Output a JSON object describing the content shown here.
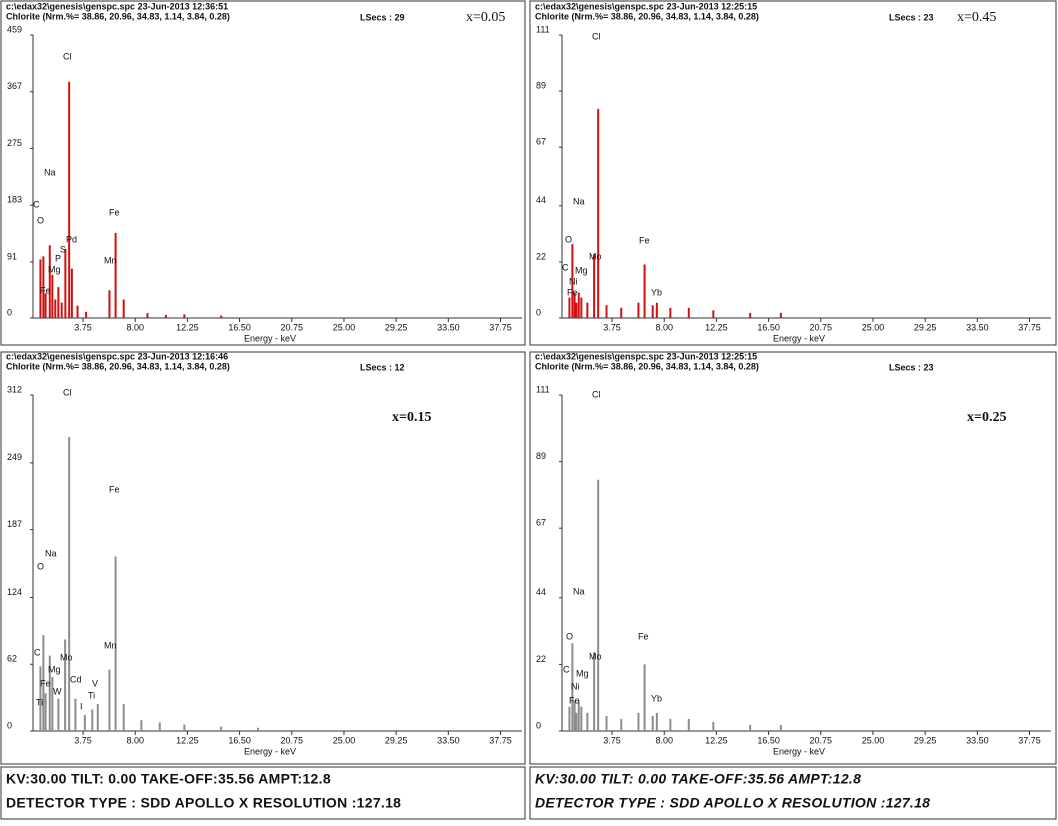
{
  "chart_data": [
    {
      "type": "bar",
      "header": "c:\\edax32\\genesis\\genspc.spc  23-Jun-2013 12:36:51",
      "subheader": "Chlorite (Nrm.%= 38.86, 20.96, 34.83, 1.14, 3.84, 0.28)",
      "lsecs": "LSecs :  29",
      "label": "x=0.05",
      "xlabel": "Energy - keV",
      "xlim": [
        0,
        39.5
      ],
      "xticks": [
        3.75,
        {
          "value": 8,
          "label": "8.00"
        },
        12.25,
        {
          "value": 16.5,
          "label": "16.50"
        },
        20.75,
        {
          "value": 25,
          "label": "25.00"
        },
        29.25,
        {
          "value": 33.5,
          "label": "33.50"
        },
        37.75
      ],
      "ylim": [
        0,
        459
      ],
      "yticks": [
        0,
        91,
        183,
        275,
        367,
        459
      ],
      "color": "#d01010",
      "x": [
        0.28,
        0.52,
        0.7,
        1.04,
        1.25,
        1.49,
        1.74,
        2.01,
        2.31,
        2.62,
        2.84,
        3.3,
        4.0,
        5.9,
        6.4,
        7.06,
        9.0,
        10.5,
        12.0,
        15.0
      ],
      "values": [
        95,
        100,
        40,
        118,
        70,
        30,
        50,
        25,
        112,
        383,
        80,
        20,
        10,
        45,
        138,
        30,
        8,
        5,
        6,
        4
      ],
      "annotations": [
        "Cl",
        "Na",
        "C",
        "O",
        "Fe",
        "Pd",
        "S",
        "P",
        "Mg",
        "Mn",
        "Fe"
      ]
    },
    {
      "type": "bar",
      "header": "c:\\edax32\\genesis\\genspc.spc  23-Jun-2013 12:25:15",
      "subheader": "Chlorite (Nrm.%= 38.86, 20.96, 34.83, 1.14, 3.84, 0.28)",
      "lsecs": "LSecs :  23",
      "label": "x=0.45",
      "xlabel": "Energy - keV",
      "xlim": [
        0,
        39.5
      ],
      "xticks": [
        3.75,
        {
          "value": 8,
          "label": "8.00"
        },
        12.25,
        {
          "value": 16.5,
          "label": "16.50"
        },
        20.75,
        {
          "value": 25,
          "label": "25.00"
        },
        29.25,
        {
          "value": 33.5,
          "label": "33.50"
        },
        37.75
      ],
      "ylim": [
        0,
        111
      ],
      "yticks": [
        0,
        22,
        44,
        67,
        89,
        111
      ],
      "color": "#d01010",
      "x": [
        0.28,
        0.52,
        0.7,
        0.85,
        1.04,
        1.25,
        1.74,
        2.29,
        2.62,
        3.3,
        4.5,
        5.9,
        6.4,
        7.06,
        7.4,
        8.5,
        10.0,
        12.0,
        15.0,
        17.5
      ],
      "values": [
        8,
        29,
        10,
        6,
        10,
        8,
        6,
        25,
        82,
        5,
        4,
        6,
        21,
        5,
        6,
        4,
        4,
        3,
        2,
        2
      ],
      "annotations": [
        "Cl",
        "Na",
        "O",
        "Mo",
        "Fe",
        "C",
        "Mg",
        "Ni",
        "Fe",
        "Yb"
      ]
    },
    {
      "type": "bar",
      "header": "c:\\edax32\\genesis\\genspc.spc  23-Jun-2013 12:16:46",
      "subheader": "Chlorite (Nrm.%= 38.86, 20.96, 34.83, 1.14, 3.84, 0.28)",
      "lsecs": "LSecs :  12",
      "label": "x=0.15",
      "xlabel": "Energy - keV",
      "xlim": [
        0,
        39.5
      ],
      "xticks": [
        3.75,
        {
          "value": 8,
          "label": "8.00"
        },
        12.25,
        {
          "value": 16.5,
          "label": "16.50"
        },
        20.75,
        {
          "value": 25,
          "label": "25.00"
        },
        29.25,
        {
          "value": 33.5,
          "label": "33.50"
        },
        37.75
      ],
      "ylim": [
        0,
        312
      ],
      "yticks": [
        0,
        62,
        124,
        187,
        249,
        312
      ],
      "color": "#8c8c8c",
      "x": [
        0.28,
        0.52,
        0.7,
        1.04,
        1.25,
        1.74,
        2.29,
        2.62,
        3.13,
        3.9,
        4.5,
        4.95,
        5.9,
        6.4,
        7.06,
        8.5,
        10.0,
        12.0,
        15.0,
        18.0
      ],
      "values": [
        60,
        89,
        35,
        70,
        50,
        30,
        85,
        273,
        30,
        15,
        20,
        25,
        57,
        162,
        25,
        10,
        8,
        6,
        4,
        3
      ],
      "annotations": [
        "Cl",
        "Fe",
        "Na",
        "O",
        "C",
        "Mo",
        "Mg",
        "Fe",
        "Cd",
        "W",
        "V",
        "Ti",
        "Mn",
        "I",
        "Ti"
      ]
    },
    {
      "type": "bar",
      "header": "c:\\edax32\\genesis\\genspc.spc  23-Jun-2013 12:25:15",
      "subheader": "Chlorite (Nrm.%= 38.86, 20.96, 34.83, 1.14, 3.84, 0.28)",
      "lsecs": "LSecs :  23",
      "label": "x=0.25",
      "xlabel": "Energy - keV",
      "xlim": [
        0,
        39.5
      ],
      "xticks": [
        3.75,
        {
          "value": 8,
          "label": "8.00"
        },
        12.25,
        {
          "value": 16.5,
          "label": "16.50"
        },
        20.75,
        {
          "value": 25,
          "label": "25.00"
        },
        29.25,
        {
          "value": 33.5,
          "label": "33.50"
        },
        37.75
      ],
      "ylim": [
        0,
        111
      ],
      "yticks": [
        0,
        22,
        44,
        67,
        89,
        111
      ],
      "color": "#8c8c8c",
      "x": [
        0.28,
        0.52,
        0.7,
        0.85,
        1.04,
        1.25,
        1.74,
        2.29,
        2.62,
        3.3,
        4.5,
        5.9,
        6.4,
        7.06,
        7.4,
        8.5,
        10.0,
        12.0,
        15.0,
        17.5
      ],
      "values": [
        8,
        29,
        10,
        6,
        10,
        8,
        6,
        26,
        83,
        5,
        4,
        6,
        22,
        5,
        6,
        4,
        4,
        3,
        2,
        2
      ],
      "annotations": [
        "Cl",
        "Na",
        "O",
        "Fe",
        "Mo",
        "C",
        "Mg",
        "Ni",
        "Fe",
        "Yb"
      ]
    }
  ],
  "footers": [
    {
      "lines": [
        "KV:30.00   TILT: 0.00   TAKE-OFF:35.56   AMPT:12.8",
        "DETECTOR TYPE : SDD APOLLO X   RESOLUTION :127.18"
      ]
    },
    {
      "lines": [
        "KV:30.00   TILT: 0.00   TAKE-OFF:35.56   AMPT:12.8",
        "DETECTOR TYPE : SDD APOLLO X   RESOLUTION :127.18"
      ]
    }
  ]
}
